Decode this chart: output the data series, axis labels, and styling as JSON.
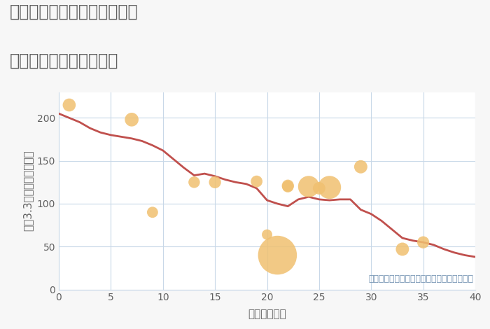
{
  "title_line1": "神奈川県横浜市南区前里町の",
  "title_line2": "築年数別中古戸建て価格",
  "xlabel": "築年数（年）",
  "ylabel": "坪（3.3㎡）単価（万円）",
  "annotation": "円の大きさは、取引のあった物件面積を示す",
  "background_color": "#f7f7f7",
  "plot_bg_color": "#ffffff",
  "grid_color": "#c8d8e8",
  "line_color": "#c0504d",
  "scatter_color": "#f0c070",
  "title_color": "#606060",
  "axis_label_color": "#606060",
  "tick_color": "#606060",
  "annotation_color": "#7090b0",
  "line_data_x": [
    0,
    1,
    2,
    3,
    4,
    5,
    6,
    7,
    8,
    9,
    10,
    11,
    12,
    13,
    14,
    15,
    16,
    17,
    18,
    19,
    20,
    21,
    22,
    23,
    24,
    25,
    26,
    27,
    28,
    29,
    30,
    31,
    32,
    33,
    34,
    35,
    36,
    37,
    38,
    39,
    40
  ],
  "line_data_y": [
    205,
    200,
    195,
    188,
    183,
    180,
    178,
    176,
    173,
    168,
    162,
    152,
    142,
    133,
    135,
    132,
    128,
    125,
    123,
    118,
    104,
    100,
    97,
    105,
    108,
    105,
    104,
    105,
    105,
    93,
    88,
    80,
    70,
    60,
    57,
    55,
    52,
    47,
    43,
    40,
    38
  ],
  "scatter_x": [
    1,
    7,
    9,
    13,
    15,
    19,
    20,
    21,
    22,
    22,
    24,
    25,
    26,
    29,
    33,
    35
  ],
  "scatter_y": [
    215,
    198,
    90,
    125,
    125,
    126,
    64,
    40,
    121,
    120,
    120,
    118,
    119,
    143,
    47,
    55
  ],
  "scatter_sizes": [
    180,
    200,
    130,
    140,
    155,
    145,
    115,
    1600,
    155,
    145,
    480,
    165,
    560,
    185,
    185,
    155
  ],
  "xlim": [
    0,
    40
  ],
  "ylim": [
    0,
    230
  ],
  "xticks": [
    0,
    5,
    10,
    15,
    20,
    25,
    30,
    35,
    40
  ],
  "yticks": [
    0,
    50,
    100,
    150,
    200
  ],
  "line_width": 2.0,
  "title_fontsize": 17,
  "axis_label_fontsize": 11,
  "tick_fontsize": 10,
  "annotation_fontsize": 9
}
